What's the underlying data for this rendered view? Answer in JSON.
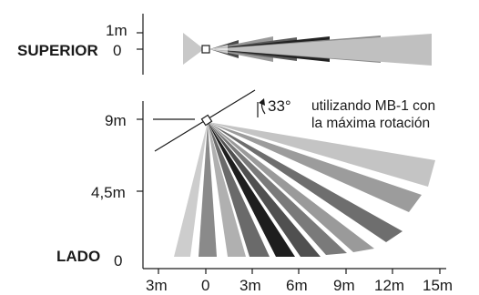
{
  "top_view": {
    "label": "SUPERIOR",
    "tick_top": "1m",
    "tick_zero": "0"
  },
  "side_view": {
    "label": "LADO",
    "y_ticks": [
      "9m",
      "4,5m",
      "0"
    ],
    "x_ticks": [
      "3m",
      "0",
      "3m",
      "6m",
      "9m",
      "12m",
      "15m"
    ],
    "angle_text": "33°",
    "note_line1": "utilizando MB-1 con",
    "note_line2": "la máxima rotación"
  },
  "colors": {
    "dark": "#1e1e1e",
    "mid_dark": "#4a4a4a",
    "mid": "#7a7a7a",
    "light": "#aaaaaa",
    "lighter": "#cdcdcd"
  }
}
